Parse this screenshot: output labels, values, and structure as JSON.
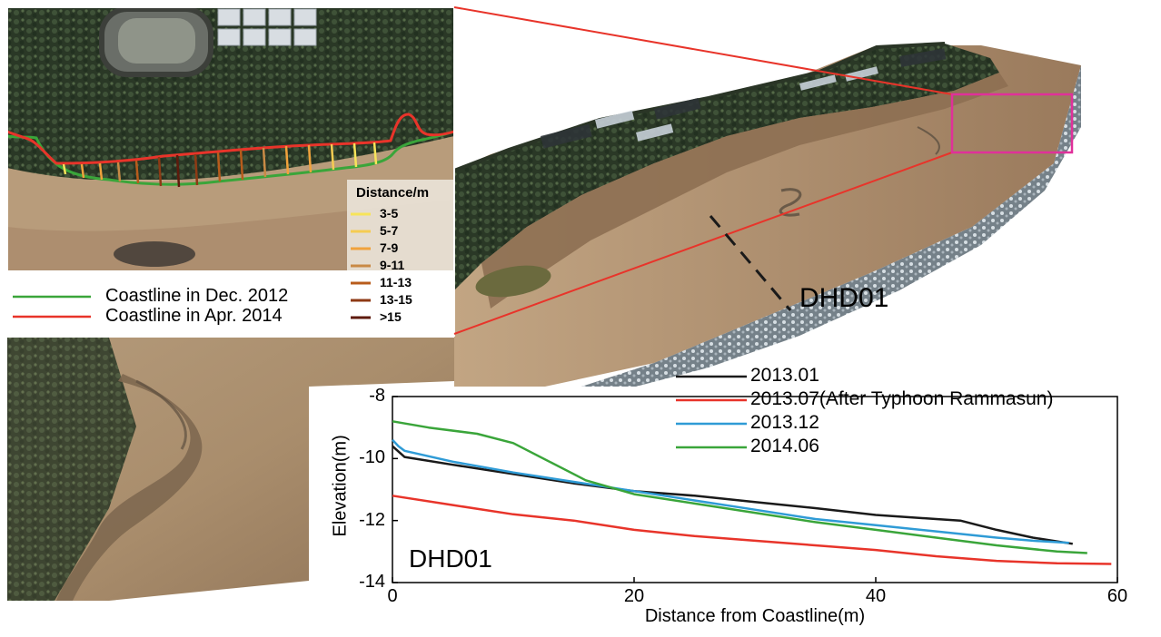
{
  "inset": {
    "legend_title": "Distance/m",
    "distance_classes": [
      {
        "label": "3-5",
        "color": "#f7e45a"
      },
      {
        "label": "5-7",
        "color": "#f5cc52"
      },
      {
        "label": "7-9",
        "color": "#f0a23c"
      },
      {
        "label": "9-11",
        "color": "#c98a45"
      },
      {
        "label": "11-13",
        "color": "#b85c1c"
      },
      {
        "label": "13-15",
        "color": "#8e3a14"
      },
      {
        "label": ">15",
        "color": "#5e1a0c"
      }
    ],
    "coastlines": [
      {
        "label": "Coastline in Dec. 2012",
        "color": "#3aa53a"
      },
      {
        "label": "Coastline in Apr. 2014",
        "color": "#e8342a"
      }
    ]
  },
  "profile_label": "DHD01",
  "highlight_color": "#e0309a",
  "chart_data": {
    "type": "line",
    "panel_label": "DHD01",
    "xlabel": "Distance from Coastline(m)",
    "ylabel": "Elevation(m)",
    "xlim": [
      0,
      60
    ],
    "ylim": [
      -14,
      -8
    ],
    "xticks": [
      0,
      20,
      40,
      60
    ],
    "yticks": [
      -8,
      -10,
      -12,
      -14
    ],
    "grid": false,
    "legend_position": "top-right",
    "series": [
      {
        "name": "2013.01",
        "color": "#1a1a1a",
        "x": [
          0,
          1,
          5,
          10,
          15,
          20,
          25,
          30,
          35,
          40,
          45,
          47,
          50,
          53,
          56.3
        ],
        "y": [
          -9.6,
          -9.95,
          -10.2,
          -10.5,
          -10.8,
          -11.05,
          -11.2,
          -11.4,
          -11.6,
          -11.82,
          -11.95,
          -12.0,
          -12.3,
          -12.55,
          -12.75
        ]
      },
      {
        "name": "2013.07(After Typhoon Rammasun)",
        "color": "#e8342a",
        "x": [
          0,
          5,
          10,
          15,
          20,
          25,
          30,
          35,
          40,
          45,
          50,
          55,
          59.5
        ],
        "y": [
          -11.2,
          -11.5,
          -11.8,
          -12.0,
          -12.3,
          -12.5,
          -12.65,
          -12.8,
          -12.95,
          -13.15,
          -13.3,
          -13.38,
          -13.4
        ]
      },
      {
        "name": "2013.12",
        "color": "#2f9bd6",
        "x": [
          0,
          0.5,
          1,
          5,
          10,
          15,
          20,
          25,
          30,
          35,
          40,
          45,
          50,
          53,
          56
        ],
        "y": [
          -9.4,
          -9.6,
          -9.75,
          -10.1,
          -10.45,
          -10.75,
          -11.05,
          -11.35,
          -11.65,
          -11.95,
          -12.15,
          -12.35,
          -12.55,
          -12.65,
          -12.72
        ]
      },
      {
        "name": "2014.06",
        "color": "#3aa53a",
        "x": [
          0,
          3,
          7,
          10,
          13,
          16,
          20,
          25,
          30,
          35,
          40,
          45,
          50,
          55,
          57.5
        ],
        "y": [
          -8.8,
          -9.0,
          -9.2,
          -9.5,
          -10.1,
          -10.7,
          -11.15,
          -11.45,
          -11.75,
          -12.05,
          -12.3,
          -12.55,
          -12.8,
          -13.0,
          -13.05
        ]
      }
    ]
  }
}
